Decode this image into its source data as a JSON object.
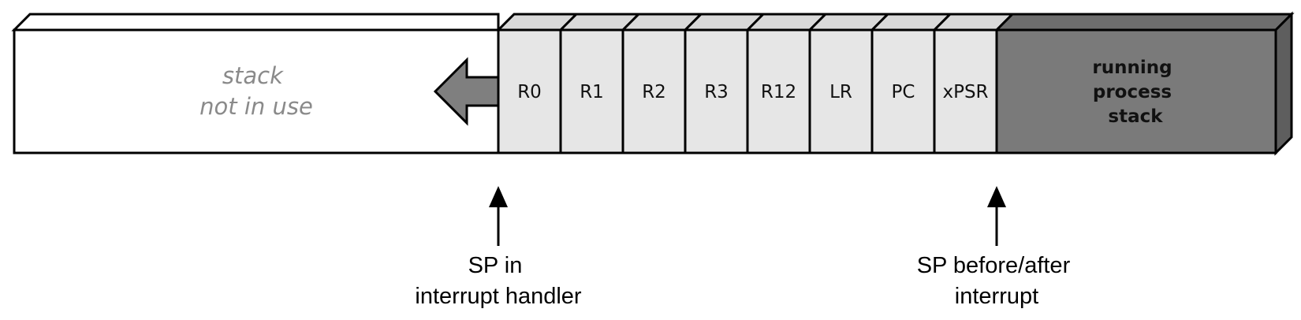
{
  "stack": {
    "unused_label": [
      "stack",
      "not in use"
    ],
    "registers": [
      "R0",
      "R1",
      "R2",
      "R3",
      "R12",
      "LR",
      "PC",
      "xPSR"
    ],
    "process_label": [
      "running",
      "process",
      "stack"
    ]
  },
  "pointers": {
    "handler": [
      "SP in",
      "interrupt handler"
    ],
    "before_after": [
      "SP before/after",
      "interrupt"
    ]
  },
  "colors": {
    "outline": "#000000",
    "frame_cell": "#e6e6e6",
    "frame_top": "#d9d9d9",
    "unused_fill": "#ffffff",
    "process_fill": "#7a7a7a",
    "process_top": "#6e6e6e",
    "process_side": "#5e5e5e",
    "growth_arrow": "#7f7f7f",
    "idle_text": "#8a8a8a"
  }
}
